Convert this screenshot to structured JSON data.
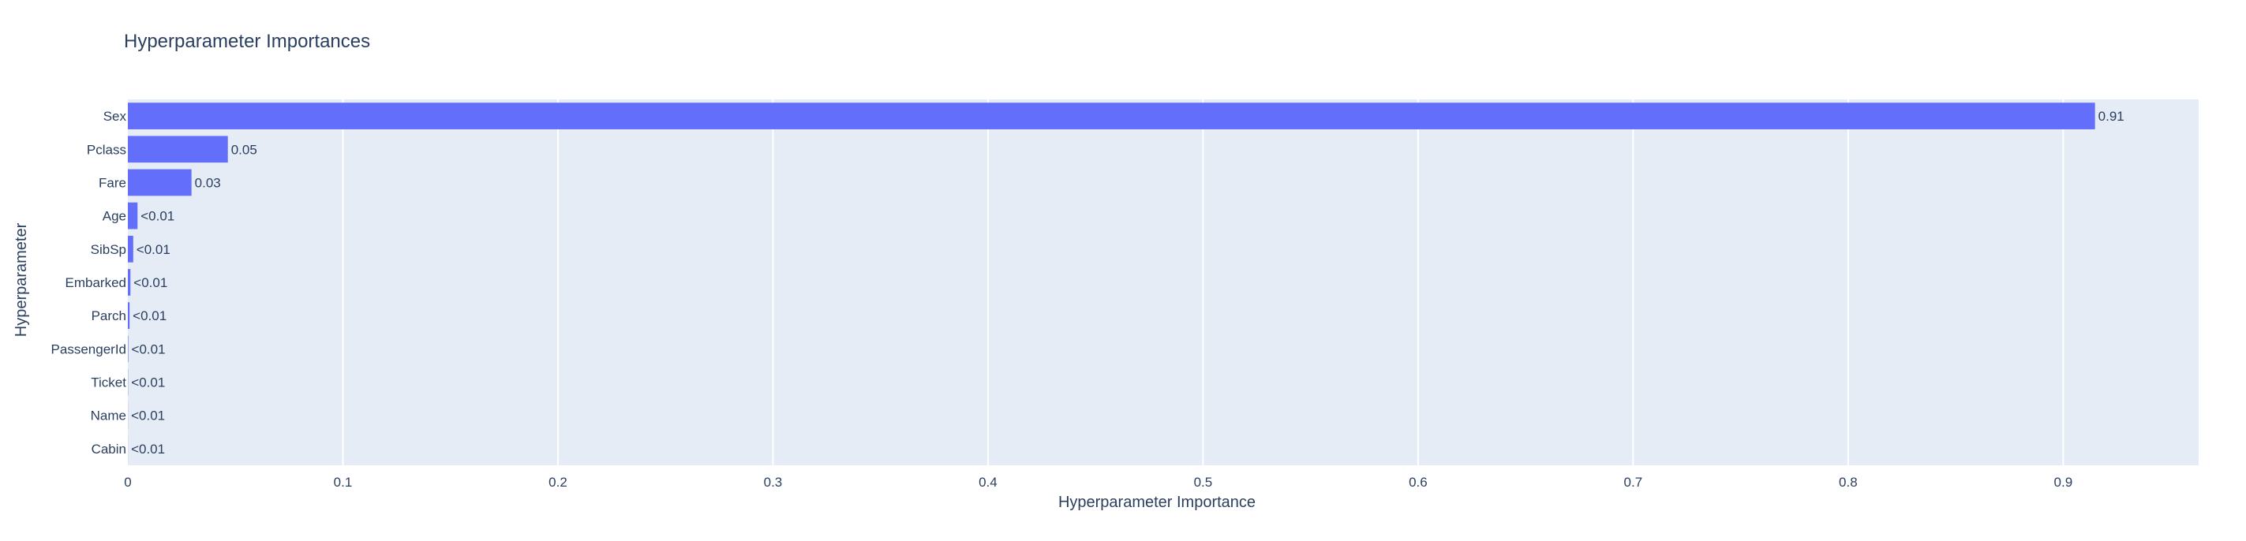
{
  "chart_data": {
    "type": "bar",
    "orientation": "horizontal",
    "title": "Hyperparameter Importances",
    "xlabel": "Hyperparameter Importance",
    "ylabel": "Hyperparameter",
    "categories": [
      "Sex",
      "Pclass",
      "Fare",
      "Age",
      "SibSp",
      "Embarked",
      "Parch",
      "PassengerId",
      "Ticket",
      "Name",
      "Cabin"
    ],
    "values": [
      0.9148,
      0.0465,
      0.0296,
      0.0045,
      0.0025,
      0.0012,
      0.0008,
      0.0002,
      0.0001,
      5e-05,
      3e-05
    ],
    "data_labels": [
      "0.91",
      "0.05",
      "0.03",
      "<0.01",
      "<0.01",
      "<0.01",
      "<0.01",
      "<0.01",
      "<0.01",
      "<0.01",
      "<0.01"
    ],
    "xticks": [
      0,
      0.1,
      0.2,
      0.3,
      0.4,
      0.5,
      0.6,
      0.7,
      0.8,
      0.9
    ],
    "xtick_labels": [
      "0",
      "0.1",
      "0.2",
      "0.3",
      "0.4",
      "0.5",
      "0.6",
      "0.7",
      "0.8",
      "0.9"
    ],
    "xlim": [
      0,
      0.963
    ],
    "grid": true,
    "legend": "none",
    "colors": {
      "bar": "#636efa",
      "plot_background": "#e5ecf6",
      "grid": "#ffffff",
      "text": "#2a3f5f"
    }
  }
}
